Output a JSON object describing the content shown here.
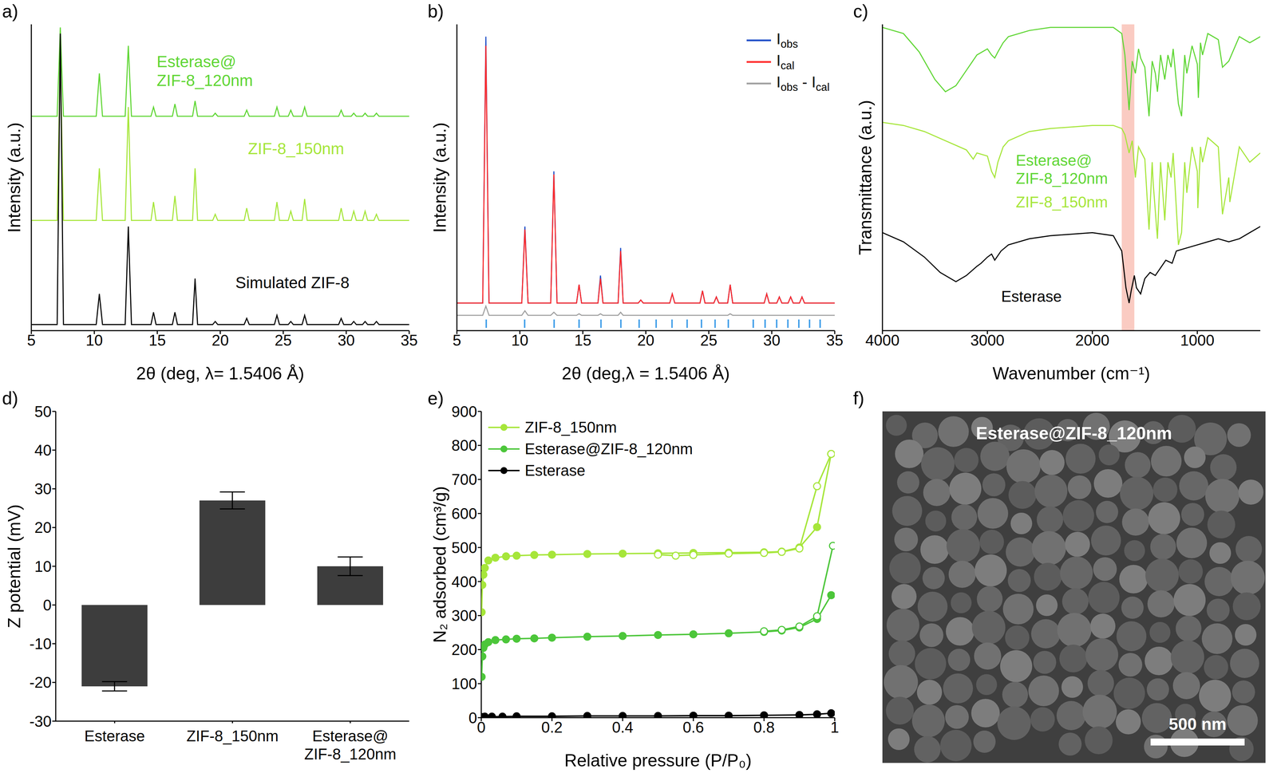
{
  "chart_data": [
    {
      "panel": "a)",
      "type": "line",
      "xlabel": "2θ (deg, λ= 1.5406 Å)",
      "ylabel": "Intensity (a.u.)",
      "xlim": [
        5,
        35
      ],
      "xticks": [
        5,
        10,
        15,
        20,
        25,
        30,
        35
      ],
      "ylim": [
        0,
        100
      ],
      "tick_labels": "x",
      "x": [
        5,
        7.05,
        7.3,
        7.55,
        10.15,
        10.4,
        10.65,
        12.45,
        12.7,
        12.95,
        14.5,
        14.7,
        14.9,
        16.2,
        16.4,
        16.6,
        17.8,
        18,
        18.2,
        19.4,
        19.6,
        19.8,
        21.9,
        22.1,
        22.3,
        24.3,
        24.5,
        24.7,
        25.4,
        25.6,
        25.8,
        26.5,
        26.7,
        26.9,
        29.4,
        29.6,
        29.8,
        30.4,
        30.6,
        30.8,
        31.3,
        31.5,
        31.7,
        32.2,
        32.4,
        32.6,
        35
      ],
      "series": [
        {
          "name": "Esterase@ZIF-8_120nm",
          "color": "#5fd634",
          "values": [
            70,
            70,
            99,
            70,
            70,
            84,
            70,
            70,
            93,
            70,
            70,
            73,
            70,
            70,
            74,
            70,
            70,
            75,
            70,
            70,
            71,
            70,
            70,
            72,
            70,
            70,
            73,
            70,
            70,
            72,
            70,
            70,
            73,
            70,
            70,
            72,
            70,
            70,
            71,
            70,
            70,
            71,
            70,
            70,
            71,
            70,
            70
          ]
        },
        {
          "name": "ZIF-8_150nm",
          "color": "#a6e63a",
          "values": [
            36,
            36,
            90,
            36,
            36,
            53,
            36,
            36,
            73,
            36,
            36,
            42,
            36,
            36,
            44,
            36,
            36,
            53,
            36,
            36,
            38,
            36,
            36,
            40,
            36,
            36,
            42,
            36,
            36,
            39,
            36,
            36,
            43,
            36,
            36,
            40,
            36,
            36,
            39,
            36,
            36,
            39,
            36,
            36,
            38,
            36,
            36
          ]
        },
        {
          "name": "Simulated ZIF-8",
          "color": "#000000",
          "values": [
            2,
            2,
            97,
            2,
            2,
            12,
            2,
            2,
            34,
            2,
            2,
            6,
            2,
            2,
            6,
            2,
            2,
            17,
            2,
            2,
            3,
            2,
            2,
            4,
            2,
            2,
            5,
            2,
            2,
            3,
            2,
            2,
            5,
            2,
            2,
            4,
            2,
            2,
            3,
            2,
            2,
            3,
            2,
            2,
            3,
            2,
            2
          ]
        }
      ]
    },
    {
      "panel": "b)",
      "type": "line",
      "xlabel": "2θ (deg,λ = 1.5406 Å)",
      "ylabel": "Intensity (a.u.)",
      "xlim": [
        5,
        35
      ],
      "xticks": [
        5,
        10,
        15,
        20,
        25,
        30,
        35
      ],
      "ylim": [
        0,
        100
      ],
      "tick_labels": "x",
      "legend": "top-right",
      "x": [
        5,
        7.05,
        7.3,
        7.55,
        10.15,
        10.4,
        10.65,
        12.45,
        12.7,
        12.95,
        14.5,
        14.7,
        14.9,
        16.2,
        16.4,
        16.6,
        17.8,
        18,
        18.2,
        19.4,
        19.6,
        19.8,
        21.9,
        22.1,
        22.3,
        24.3,
        24.5,
        24.7,
        25.4,
        25.6,
        25.8,
        26.5,
        26.7,
        26.9,
        29.4,
        29.6,
        29.8,
        30.4,
        30.6,
        30.8,
        31.3,
        31.5,
        31.7,
        32.2,
        32.4,
        32.6,
        35
      ],
      "series": [
        {
          "name": "Iobs",
          "color": "#1f4fc8",
          "values": [
            9,
            9,
            96,
            9,
            9,
            34,
            9,
            9,
            52,
            9,
            9,
            15,
            9,
            9,
            18,
            9,
            9,
            27,
            9,
            9,
            10,
            9,
            9,
            12,
            9,
            9,
            13,
            9,
            9,
            11,
            9,
            9,
            15,
            9,
            9,
            12,
            9,
            9,
            11,
            9,
            9,
            11,
            9,
            9,
            11,
            9,
            9
          ]
        },
        {
          "name": "Ical",
          "color": "#ff2a2a",
          "values": [
            9,
            9,
            93,
            9,
            9,
            33,
            9,
            9,
            51,
            9,
            9,
            15,
            9,
            9,
            17,
            9,
            9,
            26,
            9,
            9,
            10,
            9,
            9,
            12,
            9,
            9,
            13,
            9,
            9,
            11,
            9,
            9,
            15,
            9,
            9,
            12,
            9,
            9,
            11,
            9,
            9,
            11,
            9,
            9,
            11,
            9,
            9
          ]
        },
        {
          "name": "Iobs - Ical",
          "color": "#a0a0a0",
          "values": [
            5,
            5,
            8,
            5,
            5,
            6.5,
            5,
            5,
            6,
            5,
            5,
            5.5,
            5,
            5,
            5.5,
            5,
            5,
            6,
            5,
            5,
            5,
            5,
            5,
            5,
            5,
            5,
            5,
            5,
            5,
            5,
            5,
            5,
            5.5,
            5,
            5,
            5,
            5,
            5,
            5,
            5,
            5,
            5,
            5,
            5,
            5,
            5,
            5
          ]
        }
      ],
      "reflections": {
        "color": "#3a9be8",
        "x": [
          7.33,
          10.38,
          12.72,
          14.7,
          16.44,
          18.02,
          19.47,
          20.82,
          22.08,
          23.28,
          24.42,
          25.5,
          26.55,
          28.53,
          29.47,
          30.39,
          31.28,
          32.15,
          33.0,
          33.84
        ]
      }
    },
    {
      "panel": "c)",
      "type": "line",
      "xlabel": "Wavenumber (cm⁻¹)",
      "ylabel": "Transmittance (a.u.)",
      "xlim": [
        4000,
        400
      ],
      "xticks": [
        4000,
        3000,
        2000,
        1000
      ],
      "ylim": [
        0,
        100
      ],
      "tick_labels": "x",
      "highlight": {
        "color": "#f8b9ae",
        "x": [
          1720,
          1600
        ]
      },
      "series": [
        {
          "name": "Esterase@ZIF-8_120nm",
          "color": "#5fd634",
          "x": [
            4000,
            3800,
            3650,
            3500,
            3400,
            3300,
            3200,
            3100,
            3000,
            2960,
            2930,
            2900,
            2850,
            2800,
            2600,
            2400,
            2000,
            1800,
            1720,
            1690,
            1650,
            1620,
            1590,
            1560,
            1540,
            1500,
            1460,
            1430,
            1400,
            1380,
            1350,
            1310,
            1280,
            1250,
            1230,
            1180,
            1150,
            1120,
            1100,
            1050,
            1000,
            990,
            970,
            950,
            900,
            800,
            760,
            700,
            600,
            500,
            400
          ],
          "values": [
            99,
            97,
            91,
            82,
            78,
            80,
            85,
            90,
            92,
            90,
            89,
            91,
            94,
            96,
            98,
            99,
            99,
            99,
            97,
            90,
            72,
            88,
            84,
            92,
            89,
            86,
            70,
            88,
            84,
            78,
            90,
            82,
            90,
            86,
            92,
            74,
            70,
            90,
            84,
            93,
            87,
            76,
            94,
            90,
            97,
            95,
            86,
            88,
            96,
            94,
            96
          ]
        },
        {
          "name": "ZIF-8_150nm",
          "color": "#a6e63a",
          "x": [
            4000,
            3800,
            3600,
            3400,
            3200,
            3135,
            3100,
            3000,
            2960,
            2930,
            2900,
            2850,
            2800,
            2600,
            2400,
            2000,
            1800,
            1720,
            1690,
            1650,
            1620,
            1590,
            1560,
            1500,
            1460,
            1430,
            1420,
            1380,
            1350,
            1310,
            1280,
            1250,
            1230,
            1180,
            1150,
            1120,
            1100,
            1050,
            1000,
            995,
            970,
            950,
            900,
            800,
            760,
            700,
            690,
            600,
            500,
            400
          ],
          "values": [
            68,
            67,
            65,
            62,
            59,
            56,
            58,
            57,
            52,
            50,
            55,
            60,
            62,
            65,
            66,
            67,
            67,
            66,
            64,
            58,
            62,
            50,
            60,
            56,
            33,
            55,
            48,
            30,
            55,
            36,
            55,
            50,
            58,
            28,
            32,
            55,
            45,
            60,
            52,
            40,
            60,
            55,
            63,
            60,
            38,
            50,
            42,
            60,
            55,
            58
          ]
        },
        {
          "name": "Esterase",
          "color": "#000000",
          "x": [
            4000,
            3800,
            3600,
            3450,
            3300,
            3200,
            3100,
            3060,
            3000,
            2960,
            2930,
            2870,
            2800,
            2600,
            2400,
            2000,
            1800,
            1720,
            1680,
            1650,
            1630,
            1600,
            1580,
            1540,
            1500,
            1450,
            1400,
            1300,
            1240,
            1200,
            1100,
            1000,
            900,
            800,
            700,
            600,
            500,
            400
          ],
          "values": [
            32,
            29,
            24,
            19,
            16,
            18,
            21,
            22,
            24,
            25,
            23,
            26,
            28,
            30,
            31,
            32,
            31,
            26,
            14,
            9,
            13,
            18,
            14,
            12,
            17,
            19,
            18,
            23,
            22,
            26,
            27,
            28,
            29,
            30,
            29,
            30,
            32,
            34
          ]
        }
      ]
    },
    {
      "panel": "d)",
      "type": "bar",
      "ylabel": "Z potential (mV)",
      "categories": [
        "Esterase",
        "ZIF-8_150nm",
        "Esterase@ZIF-8_120nm"
      ],
      "values": [
        -21,
        27,
        10
      ],
      "errors": [
        1.2,
        2.2,
        2.4
      ],
      "color": "#3d3d3d",
      "ylim": [
        -30,
        50
      ],
      "yticks": [
        -30,
        -20,
        -10,
        0,
        10,
        20,
        30,
        40,
        50
      ]
    },
    {
      "panel": "e)",
      "type": "scatter",
      "marker": "circle",
      "line_style": "solid",
      "xlabel": "Relative pressure (P/P₀)",
      "ylabel": "N₂ adsorbed (cm³/g)",
      "xlim": [
        0,
        1
      ],
      "xticks": [
        0,
        0.2,
        0.4,
        0.6,
        0.8,
        1
      ],
      "ylim": [
        0,
        900
      ],
      "yticks": [
        0,
        100,
        200,
        300,
        400,
        500,
        600,
        700,
        800,
        900
      ],
      "legend": "top-left",
      "series": [
        {
          "name": "ZIF-8_150nm",
          "color": "#a6e63a",
          "x": [
            0.001,
            0.003,
            0.006,
            0.01,
            0.02,
            0.04,
            0.07,
            0.1,
            0.15,
            0.2,
            0.3,
            0.4,
            0.5,
            0.6,
            0.7,
            0.8,
            0.85,
            0.9,
            0.95,
            0.99
          ],
          "values": [
            310,
            390,
            420,
            440,
            462,
            470,
            474,
            476,
            478,
            479,
            481,
            482,
            483,
            484,
            485,
            486,
            488,
            500,
            560,
            775
          ],
          "desorption": {
            "x": [
              0.99,
              0.95,
              0.9,
              0.85,
              0.8,
              0.7,
              0.6,
              0.55,
              0.5
            ],
            "values": [
              775,
              680,
              497,
              487,
              484,
              482,
              478,
              476,
              479
            ]
          }
        },
        {
          "name": "Esterase@ZIF-8_120nm",
          "color": "#4cc63a",
          "x": [
            0.001,
            0.003,
            0.006,
            0.01,
            0.02,
            0.04,
            0.07,
            0.1,
            0.15,
            0.2,
            0.3,
            0.4,
            0.5,
            0.6,
            0.7,
            0.8,
            0.85,
            0.9,
            0.95,
            0.99
          ],
          "values": [
            120,
            180,
            205,
            215,
            222,
            228,
            230,
            232,
            233,
            235,
            238,
            240,
            243,
            245,
            248,
            252,
            256,
            265,
            290,
            360
          ],
          "desorption": {
            "x": [
              0.995,
              0.95,
              0.9,
              0.85,
              0.8
            ],
            "values": [
              505,
              298,
              268,
              258,
              254
            ]
          }
        },
        {
          "name": "Esterase",
          "color": "#000000",
          "x": [
            0.001,
            0.01,
            0.03,
            0.06,
            0.1,
            0.2,
            0.3,
            0.4,
            0.5,
            0.6,
            0.7,
            0.8,
            0.9,
            0.95,
            0.99
          ],
          "values": [
            2,
            3,
            3,
            3,
            4,
            4,
            5,
            5,
            5,
            6,
            6,
            7,
            8,
            10,
            13
          ]
        }
      ]
    },
    {
      "panel": "f)",
      "type": "image",
      "annotations": [
        "Esterase@ZIF-8_120nm"
      ],
      "scale_bar": "500 nm"
    }
  ]
}
